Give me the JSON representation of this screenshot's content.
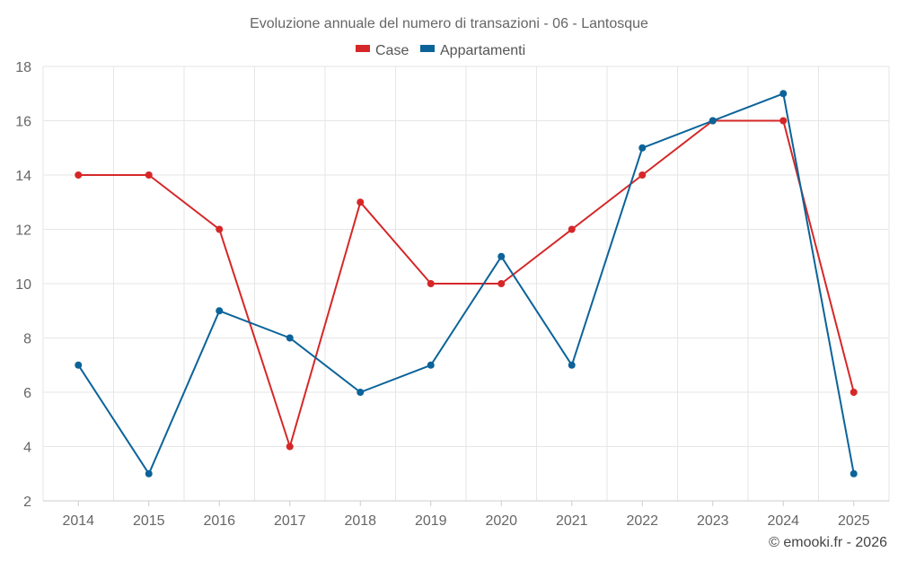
{
  "chart_data": {
    "type": "line",
    "title": "Evoluzione annuale del numero di transazioni - 06 - Lantosque",
    "categories": [
      "2014",
      "2015",
      "2016",
      "2017",
      "2018",
      "2019",
      "2020",
      "2021",
      "2022",
      "2023",
      "2024",
      "2025"
    ],
    "series": [
      {
        "name": "Case",
        "color": "#d62728",
        "values": [
          14,
          14,
          12,
          4,
          13,
          10,
          10,
          12,
          14,
          16,
          16,
          6
        ]
      },
      {
        "name": "Appartamenti",
        "color": "#0b6399",
        "values": [
          7,
          3,
          9,
          8,
          6,
          7,
          11,
          7,
          15,
          16,
          17,
          3
        ]
      }
    ],
    "ylim": [
      2,
      18
    ],
    "yticks": [
      2,
      4,
      6,
      8,
      10,
      12,
      14,
      16,
      18
    ],
    "xlabel": "",
    "ylabel": "",
    "grid": true,
    "legend_position": "top-center"
  },
  "credit": "© emooki.fr - 2026"
}
